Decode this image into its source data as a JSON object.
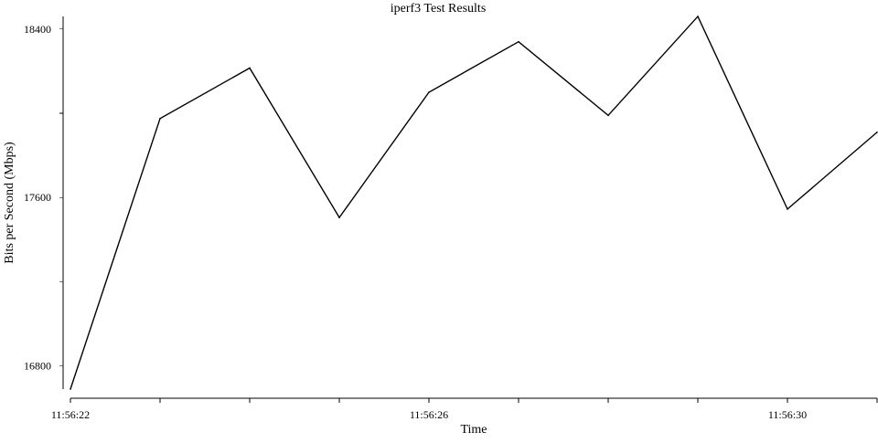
{
  "chart_data": {
    "type": "line",
    "title": "iperf3 Test Results",
    "xlabel": "Time",
    "ylabel": "Bits per Second (Mbps)",
    "x": [
      "11:56:22",
      "11:56:23",
      "11:56:24",
      "11:56:25",
      "11:56:26",
      "11:56:27",
      "11:56:28",
      "11:56:29",
      "11:56:30",
      "11:56:31"
    ],
    "series": [
      {
        "values": [
          16690,
          17975,
          18215,
          17505,
          18100,
          18340,
          17990,
          18460,
          17545,
          17910
        ],
        "color": "#000000"
      }
    ],
    "xlim": [
      "11:56:22",
      "11:56:31"
    ],
    "ylim": [
      16690,
      18460
    ],
    "x_ticks": [
      "11:56:22",
      "11:56:23",
      "11:56:24",
      "11:56:25",
      "11:56:26",
      "11:56:27",
      "11:56:28",
      "11:56:29",
      "11:56:30",
      "11:56:31"
    ],
    "x_tick_labels": [
      "11:56:22",
      "",
      "",
      "",
      "11:56:26",
      "",
      "",
      "",
      "11:56:30",
      ""
    ],
    "y_ticks": [
      16800,
      17200,
      17600,
      18000,
      18400
    ],
    "y_tick_labels": [
      "16800",
      "",
      "17600",
      "",
      "18400"
    ],
    "grid": false,
    "legend": "none"
  }
}
